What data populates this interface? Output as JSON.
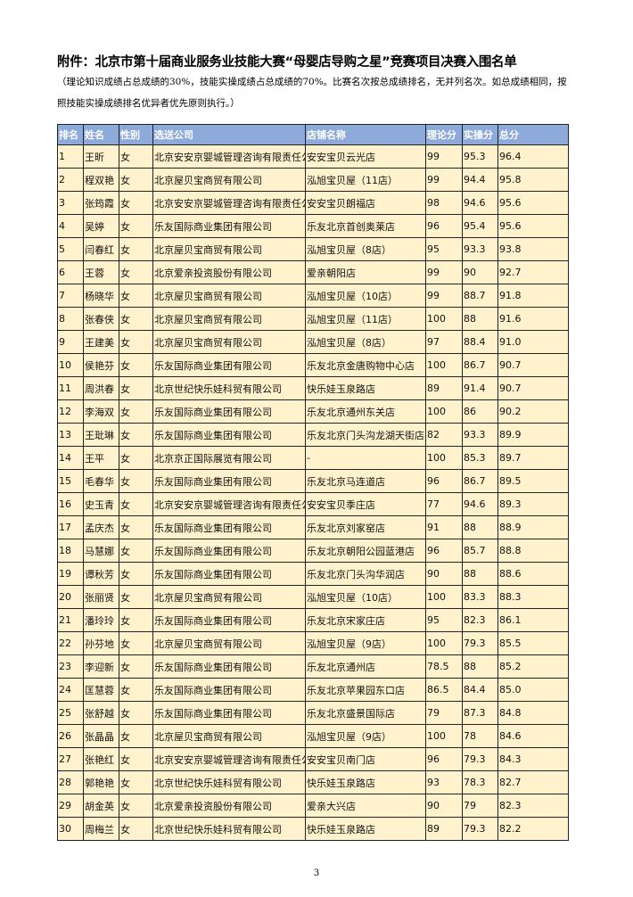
{
  "title": "附件：北京市第十届商业服务业技能大赛“母婴店导购之星”竞赛项目决赛入围名单",
  "note": "（理论知识成绩占总成绩的30%，技能实操成绩占总成绩的70%。比赛名次按总成绩排名，无并列名次。如总成绩相同，按照技能实操成绩排名优异者优先原则执行。）",
  "table": {
    "header_color": "#8EAADB",
    "row_color": "#FFF2CC",
    "columns": [
      "排名",
      "姓名",
      "性别",
      "选送公司",
      "店铺名称",
      "理论分",
      "实操分",
      "总分"
    ],
    "rows": [
      [
        "1",
        "王昕",
        "女",
        "北京安安京婴城管理咨询有限责任公司",
        "安安宝贝云光店",
        "99",
        "95.3",
        "96.4"
      ],
      [
        "2",
        "程双艳",
        "女",
        "北京屋贝宝商贸有限公司",
        "泓旭宝贝屋（11店）",
        "99",
        "94.4",
        "95.8"
      ],
      [
        "3",
        "张筠霞",
        "女",
        "北京安安京婴城管理咨询有限责任公司",
        "安安宝贝朗福店",
        "98",
        "94.6",
        "95.6"
      ],
      [
        "4",
        "吴婷",
        "女",
        "乐友国际商业集团有限公司",
        "乐友北京首创奥莱店",
        "96",
        "95.4",
        "95.6"
      ],
      [
        "5",
        "闫春红",
        "女",
        "北京屋贝宝商贸有限公司",
        "泓旭宝贝屋（8店）",
        "95",
        "93.3",
        "93.8"
      ],
      [
        "6",
        "王蓉",
        "女",
        "北京爱亲投资股份有限公司",
        "爱亲朝阳店",
        "99",
        "90",
        "92.7"
      ],
      [
        "7",
        "杨晓华",
        "女",
        "北京屋贝宝商贸有限公司",
        "泓旭宝贝屋（10店）",
        "99",
        "88.7",
        "91.8"
      ],
      [
        "8",
        "张春侠",
        "女",
        "北京屋贝宝商贸有限公司",
        "泓旭宝贝屋（11店）",
        "100",
        "88",
        "91.6"
      ],
      [
        "9",
        "王建美",
        "女",
        "北京屋贝宝商贸有限公司",
        "泓旭宝贝屋（8店）",
        "97",
        "88.4",
        "91.0"
      ],
      [
        "10",
        "侯艳芬",
        "女",
        "乐友国际商业集团有限公司",
        "乐友北京金唐购物中心店",
        "100",
        "86.7",
        "90.7"
      ],
      [
        "11",
        "周洪春",
        "女",
        "北京世纪快乐娃科贸有限公司",
        "快乐娃玉泉路店",
        "89",
        "91.4",
        "90.7"
      ],
      [
        "12",
        "李海双",
        "女",
        "乐友国际商业集团有限公司",
        "乐友北京通州东关店",
        "100",
        "86",
        "90.2"
      ],
      [
        "13",
        "王玭琳",
        "女",
        "乐友国际商业集团有限公司",
        "乐友北京门头沟龙湖天街店",
        "82",
        "93.3",
        "89.9"
      ],
      [
        "14",
        "王平",
        "女",
        "北京京正国际展览有限公司",
        "-",
        "100",
        "85.3",
        "89.7"
      ],
      [
        "15",
        "毛春华",
        "女",
        "乐友国际商业集团有限公司",
        "乐友北京马连道店",
        "96",
        "86.7",
        "89.5"
      ],
      [
        "16",
        "史玉青",
        "女",
        "北京安安京婴城管理咨询有限责任公司",
        "安安宝贝季庄店",
        "77",
        "94.6",
        "89.3"
      ],
      [
        "17",
        "孟庆杰",
        "女",
        "乐友国际商业集团有限公司",
        "乐友北京刘家窑店",
        "91",
        "88",
        "88.9"
      ],
      [
        "18",
        "马慧娜",
        "女",
        "乐友国际商业集团有限公司",
        "乐友北京朝阳公园蓝港店",
        "96",
        "85.7",
        "88.8"
      ],
      [
        "19",
        "谭秋芳",
        "女",
        "乐友国际商业集团有限公司",
        "乐友北京门头沟华润店",
        "90",
        "88",
        "88.6"
      ],
      [
        "20",
        "张丽贤",
        "女",
        "北京屋贝宝商贸有限公司",
        "泓旭宝贝屋（10店）",
        "100",
        "83.3",
        "88.3"
      ],
      [
        "21",
        "潘玲玲",
        "女",
        "乐友国际商业集团有限公司",
        "乐友北京宋家庄店",
        "95",
        "82.3",
        "86.1"
      ],
      [
        "22",
        "孙芬地",
        "女",
        "北京屋贝宝商贸有限公司",
        "泓旭宝贝屋（9店）",
        "100",
        "79.3",
        "85.5"
      ],
      [
        "23",
        "李迎新",
        "女",
        "乐友国际商业集团有限公司",
        "乐友北京通州店",
        "78.5",
        "88",
        "85.2"
      ],
      [
        "24",
        "匡慧蓉",
        "女",
        "乐友国际商业集团有限公司",
        "乐友北京苹果园东口店",
        "86.5",
        "84.4",
        "85.0"
      ],
      [
        "25",
        "张舒越",
        "女",
        "乐友国际商业集团有限公司",
        "乐友北京盛景国际店",
        "79",
        "87.3",
        "84.8"
      ],
      [
        "26",
        "张晶晶",
        "女",
        "北京屋贝宝商贸有限公司",
        "泓旭宝贝屋（9店）",
        "100",
        "78",
        "84.6"
      ],
      [
        "27",
        "张艳红",
        "女",
        "北京安安京婴城管理咨询有限责任公司",
        "安安宝贝南门店",
        "96",
        "79.3",
        "84.3"
      ],
      [
        "28",
        "郭艳艳",
        "女",
        "北京世纪快乐娃科贸有限公司",
        "快乐娃玉泉路店",
        "93",
        "78.3",
        "82.7"
      ],
      [
        "29",
        "胡金英",
        "女",
        "北京爱亲投资股份有限公司",
        "爱亲大兴店",
        "90",
        "79",
        "82.3"
      ],
      [
        "30",
        "周梅兰",
        "女",
        "北京世纪快乐娃科贸有限公司",
        "快乐娃玉泉路店",
        "89",
        "79.3",
        "82.2"
      ]
    ]
  },
  "page_number": "3"
}
